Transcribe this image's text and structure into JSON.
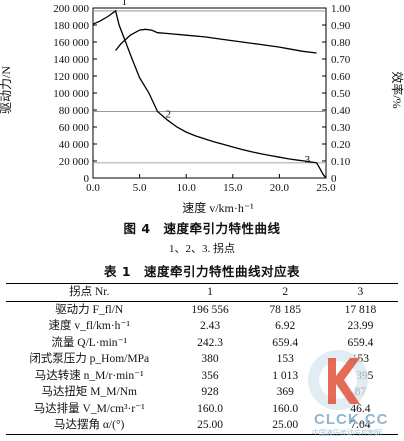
{
  "figure": {
    "caption": "图 4　速度牵引力特性曲线",
    "note": "1、2、3. 拐点"
  },
  "chart_data": {
    "type": "line",
    "xlabel": "速度 v/km·h⁻¹",
    "ylabel_left": "驱动力/N",
    "ylabel_right": "效率/%",
    "xlim": [
      0,
      25
    ],
    "ylim_left": [
      0,
      200000
    ],
    "ylim_right": [
      0,
      1.0
    ],
    "x_ticks": [
      "0.0",
      "5.0",
      "10.0",
      "15.0",
      "20.0",
      "25.0"
    ],
    "y_left_ticks": [
      "0",
      "20 000",
      "40 000",
      "60 000",
      "80 000",
      "100 000",
      "120 000",
      "140 000",
      "160 000",
      "180 000",
      "200 000"
    ],
    "y_right_ticks": [
      "0",
      "0.10",
      "0.20",
      "0.30",
      "0.40",
      "0.50",
      "0.60",
      "0.70",
      "0.80",
      "0.90",
      "1.00"
    ],
    "grid": false,
    "series": [
      {
        "axis": "left",
        "points": [
          [
            0,
            181000
          ],
          [
            0.8,
            185000
          ],
          [
            1.6,
            190000
          ],
          [
            2.43,
            196556
          ],
          [
            2.8,
            180000
          ],
          [
            3.5,
            160000
          ],
          [
            4.2,
            140000
          ],
          [
            5.0,
            118000
          ],
          [
            6.0,
            100000
          ],
          [
            6.92,
            78185
          ],
          [
            8.0,
            68000
          ],
          [
            9.0,
            60000
          ],
          [
            10.0,
            54000
          ],
          [
            11.0,
            49500
          ],
          [
            12.0,
            46000
          ],
          [
            13.0,
            42500
          ],
          [
            14.0,
            39500
          ],
          [
            15.0,
            36500
          ],
          [
            16.0,
            33500
          ],
          [
            17.0,
            31000
          ],
          [
            18.0,
            28500
          ],
          [
            19.0,
            26500
          ],
          [
            20.0,
            24500
          ],
          [
            21.0,
            22500
          ],
          [
            22.0,
            21000
          ],
          [
            23.0,
            19500
          ],
          [
            23.99,
            17818
          ],
          [
            24.3,
            12000
          ],
          [
            24.7,
            4000
          ],
          [
            25.0,
            0
          ]
        ]
      },
      {
        "axis": "right",
        "points": [
          [
            2.43,
            0.75
          ],
          [
            3.0,
            0.79
          ],
          [
            4.0,
            0.84
          ],
          [
            5.0,
            0.87
          ],
          [
            5.6,
            0.875
          ],
          [
            6.3,
            0.87
          ],
          [
            6.92,
            0.855
          ],
          [
            8.0,
            0.85
          ],
          [
            10.0,
            0.84
          ],
          [
            12.0,
            0.83
          ],
          [
            14.0,
            0.815
          ],
          [
            16.0,
            0.8
          ],
          [
            18.0,
            0.785
          ],
          [
            20.0,
            0.77
          ],
          [
            21.0,
            0.76
          ],
          [
            22.5,
            0.745
          ],
          [
            23.99,
            0.735
          ]
        ]
      }
    ],
    "reference_lines": [
      {
        "axis": "left",
        "y": 196556
      },
      {
        "axis": "left",
        "y": 78185
      },
      {
        "axis": "left",
        "y": 17818
      }
    ],
    "annotations": [
      {
        "label": "1",
        "x": 2.43,
        "y": 196556
      },
      {
        "label": "2",
        "x": 6.92,
        "y": 78185
      },
      {
        "label": "3",
        "x": 23.99,
        "y": 17818
      }
    ]
  },
  "table": {
    "caption": "表 1　速度牵引力特性曲线对应表",
    "headers": [
      "拐点 Nr.",
      "1",
      "2",
      "3"
    ],
    "rows": [
      [
        "驱动力 F_fl/N",
        "196 556",
        "78 185",
        "17 818"
      ],
      [
        "速度 v_fl/km·h⁻¹",
        "2.43",
        "6.92",
        "23.99"
      ],
      [
        "流量 Q/L·min⁻¹",
        "242.3",
        "659.4",
        "659.4"
      ],
      [
        "闭式泵压力 p_Hom/MPa",
        "380",
        "153",
        "153"
      ],
      [
        "马达转速 n_M/r·min⁻¹",
        "356",
        "1 013",
        "3 395"
      ],
      [
        "马达扭矩 M_M/Nm",
        "928",
        "369",
        "87"
      ],
      [
        "马达排量 V_M/cm³·r⁻¹",
        "160.0",
        "160.0",
        "46.4"
      ],
      [
        "马达摆角 α/(°)",
        "25.00",
        "25.00",
        "7.04"
      ]
    ]
  },
  "watermark": {
    "text": "CLCK.CC",
    "sub": "中国液压传动与控制网"
  }
}
